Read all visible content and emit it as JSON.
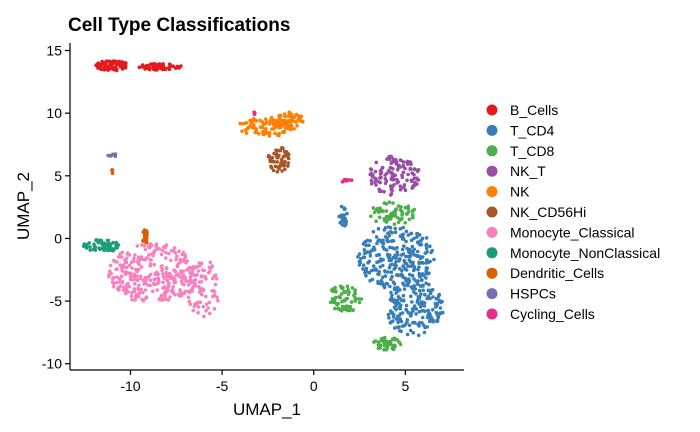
{
  "chart_data": {
    "type": "scatter",
    "title": "Cell Type Classifications",
    "xlabel": "UMAP_1",
    "ylabel": "UMAP_2",
    "xlim": [
      -13.3,
      8.2
    ],
    "ylim": [
      -10.5,
      15.6
    ],
    "xticks": [
      -10,
      -5,
      0,
      5
    ],
    "yticks": [
      -10,
      -5,
      0,
      5,
      10,
      15
    ],
    "xtick_labels": [
      "-10",
      "-5",
      "0",
      "5"
    ],
    "ytick_labels": [
      "-10",
      "-5",
      "0",
      "5",
      "10",
      "15"
    ],
    "grid": false,
    "legend_position": "right",
    "series": [
      {
        "name": "B_Cells",
        "color": "#E41A1C",
        "clusters": [
          {
            "cx": -11.0,
            "cy": 13.8,
            "rx": 0.9,
            "ry": 0.4,
            "n": 90
          },
          {
            "cx": -8.4,
            "cy": 13.7,
            "rx": 1.2,
            "ry": 0.25,
            "n": 60
          }
        ]
      },
      {
        "name": "T_CD4",
        "color": "#377EB8",
        "clusters": [
          {
            "cx": 4.5,
            "cy": -1.5,
            "rx": 2.1,
            "ry": 2.6,
            "n": 260
          },
          {
            "cx": 5.5,
            "cy": -5.5,
            "rx": 1.6,
            "ry": 2.3,
            "n": 190
          },
          {
            "cx": 1.6,
            "cy": 1.8,
            "rx": 0.25,
            "ry": 0.9,
            "n": 20
          }
        ]
      },
      {
        "name": "T_CD8",
        "color": "#4DAF4A",
        "clusters": [
          {
            "cx": 4.3,
            "cy": 2.0,
            "rx": 1.3,
            "ry": 0.9,
            "n": 70
          },
          {
            "cx": 1.7,
            "cy": -4.8,
            "rx": 1.0,
            "ry": 1.1,
            "n": 70
          },
          {
            "cx": 4.0,
            "cy": -8.4,
            "rx": 0.8,
            "ry": 0.5,
            "n": 50
          }
        ]
      },
      {
        "name": "NK_T",
        "color": "#984EA3",
        "clusters": [
          {
            "cx": 4.4,
            "cy": 5.0,
            "rx": 1.4,
            "ry": 1.6,
            "n": 120
          }
        ]
      },
      {
        "name": "NK",
        "color": "#FF7F00",
        "clusters": [
          {
            "cx": -2.6,
            "cy": 8.9,
            "rx": 1.5,
            "ry": 0.8,
            "n": 90
          },
          {
            "cx": -1.3,
            "cy": 9.4,
            "rx": 0.8,
            "ry": 0.7,
            "n": 50
          }
        ]
      },
      {
        "name": "NK_CD56Hi",
        "color": "#A65628",
        "clusters": [
          {
            "cx": -1.9,
            "cy": 6.3,
            "rx": 0.6,
            "ry": 1.0,
            "n": 55
          }
        ]
      },
      {
        "name": "Monocyte_Classical",
        "color": "#F781BF",
        "clusters": [
          {
            "cx": -8.8,
            "cy": -2.8,
            "rx": 2.4,
            "ry": 2.4,
            "n": 300
          },
          {
            "cx": -6.0,
            "cy": -4.0,
            "rx": 0.9,
            "ry": 2.3,
            "n": 80
          }
        ]
      },
      {
        "name": "Monocyte_NonClassical",
        "color": "#1B9E77",
        "clusters": [
          {
            "cx": -11.6,
            "cy": -0.6,
            "rx": 1.0,
            "ry": 0.5,
            "n": 55
          }
        ]
      },
      {
        "name": "Dendritic_Cells",
        "color": "#D95F02",
        "clusters": [
          {
            "cx": -9.2,
            "cy": 0.1,
            "rx": 0.15,
            "ry": 0.6,
            "n": 18
          },
          {
            "cx": -11.0,
            "cy": 5.3,
            "rx": 0.05,
            "ry": 0.2,
            "n": 5
          }
        ]
      },
      {
        "name": "HSPCs",
        "color": "#7570B3",
        "clusters": [
          {
            "cx": -11.0,
            "cy": 6.6,
            "rx": 0.25,
            "ry": 0.2,
            "n": 8
          }
        ]
      },
      {
        "name": "Cycling_Cells",
        "color": "#E7298A",
        "clusters": [
          {
            "cx": 1.8,
            "cy": 4.6,
            "rx": 0.3,
            "ry": 0.15,
            "n": 8
          },
          {
            "cx": -3.2,
            "cy": 10.0,
            "rx": 0.1,
            "ry": 0.1,
            "n": 3
          }
        ]
      }
    ]
  }
}
